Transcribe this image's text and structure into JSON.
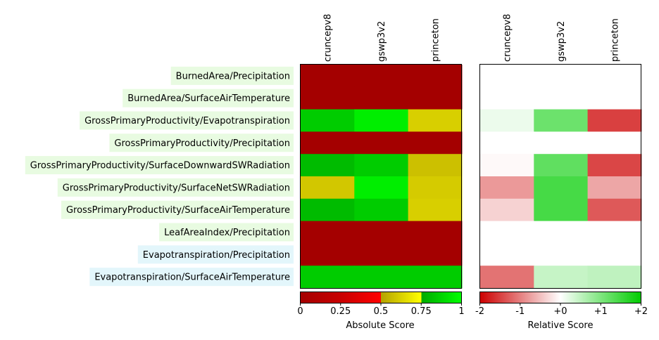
{
  "chart_data": [
    {
      "type": "heatmap",
      "title": "",
      "xlabel": "",
      "ylabel": "",
      "columns": [
        "cruncepv8",
        "gswp3v2",
        "princeton"
      ],
      "rows": [
        {
          "label": "BurnedArea/Precipitation",
          "group": "green"
        },
        {
          "label": "BurnedArea/SurfaceAirTemperature",
          "group": "green"
        },
        {
          "label": "GrossPrimaryProductivity/Evapotranspiration",
          "group": "green"
        },
        {
          "label": "GrossPrimaryProductivity/Precipitation",
          "group": "green"
        },
        {
          "label": "GrossPrimaryProductivity/SurfaceDownwardSWRadiation",
          "group": "green"
        },
        {
          "label": "GrossPrimaryProductivity/SurfaceNetSWRadiation",
          "group": "green"
        },
        {
          "label": "GrossPrimaryProductivity/SurfaceAirTemperature",
          "group": "green"
        },
        {
          "label": "LeafAreaIndex/Precipitation",
          "group": "green"
        },
        {
          "label": "Evapotranspiration/Precipitation",
          "group": "blue"
        },
        {
          "label": "Evapotranspiration/SurfaceAirTemperature",
          "group": "blue"
        }
      ],
      "values": [
        [
          0.0,
          0.0,
          0.0
        ],
        [
          0.0,
          0.0,
          0.0
        ],
        [
          0.85,
          0.95,
          0.62
        ],
        [
          0.0,
          0.0,
          0.0
        ],
        [
          0.8,
          0.85,
          0.58
        ],
        [
          0.6,
          0.95,
          0.61
        ],
        [
          0.8,
          0.85,
          0.62
        ],
        [
          0.0,
          0.0,
          0.0
        ],
        [
          0.0,
          0.0,
          0.0
        ],
        [
          0.85,
          0.85,
          0.85
        ]
      ],
      "colorbar": {
        "label": "Absolute Score",
        "ticks": [
          "0",
          "0.25",
          "0.5",
          "0.75",
          "1"
        ],
        "range": [
          0,
          1
        ],
        "stops": [
          {
            "value": 0.0,
            "color": "#a40000"
          },
          {
            "value": 0.25,
            "color": "#c80000"
          },
          {
            "value": 0.499,
            "color": "#ff0000"
          },
          {
            "value": 0.5,
            "color": "#b4a200"
          },
          {
            "value": 0.75,
            "color": "#ffff00"
          },
          {
            "value": 0.751,
            "color": "#00aa00"
          },
          {
            "value": 1.0,
            "color": "#00ff00"
          }
        ]
      }
    },
    {
      "type": "heatmap",
      "title": "",
      "xlabel": "",
      "ylabel": "",
      "columns": [
        "cruncepv8",
        "gswp3v2",
        "princeton"
      ],
      "values": [
        [
          0.0,
          0.0,
          0.0
        ],
        [
          0.0,
          0.0,
          0.0
        ],
        [
          0.15,
          1.15,
          -1.5
        ],
        [
          0.0,
          0.0,
          0.0
        ],
        [
          -0.05,
          1.25,
          -1.45
        ],
        [
          -0.8,
          1.45,
          -0.7
        ],
        [
          -0.35,
          1.45,
          -1.3
        ],
        [
          0.0,
          0.0,
          0.0
        ],
        [
          0.0,
          0.0,
          0.0
        ],
        [
          -1.1,
          0.45,
          0.5
        ]
      ],
      "colorbar": {
        "label": "Relative Score",
        "ticks": [
          "-2",
          "-1",
          "+0",
          "+1",
          "+2"
        ],
        "range": [
          -2,
          2
        ],
        "stops": [
          {
            "value": -2,
            "color": "#cc0000"
          },
          {
            "value": 0,
            "color": "#ffffff"
          },
          {
            "value": 2,
            "color": "#00cc00"
          }
        ]
      }
    }
  ],
  "colors": {
    "label_bg_green": "#e8fbe1",
    "label_bg_blue": "#e3f6fb",
    "frame": "#000000"
  }
}
